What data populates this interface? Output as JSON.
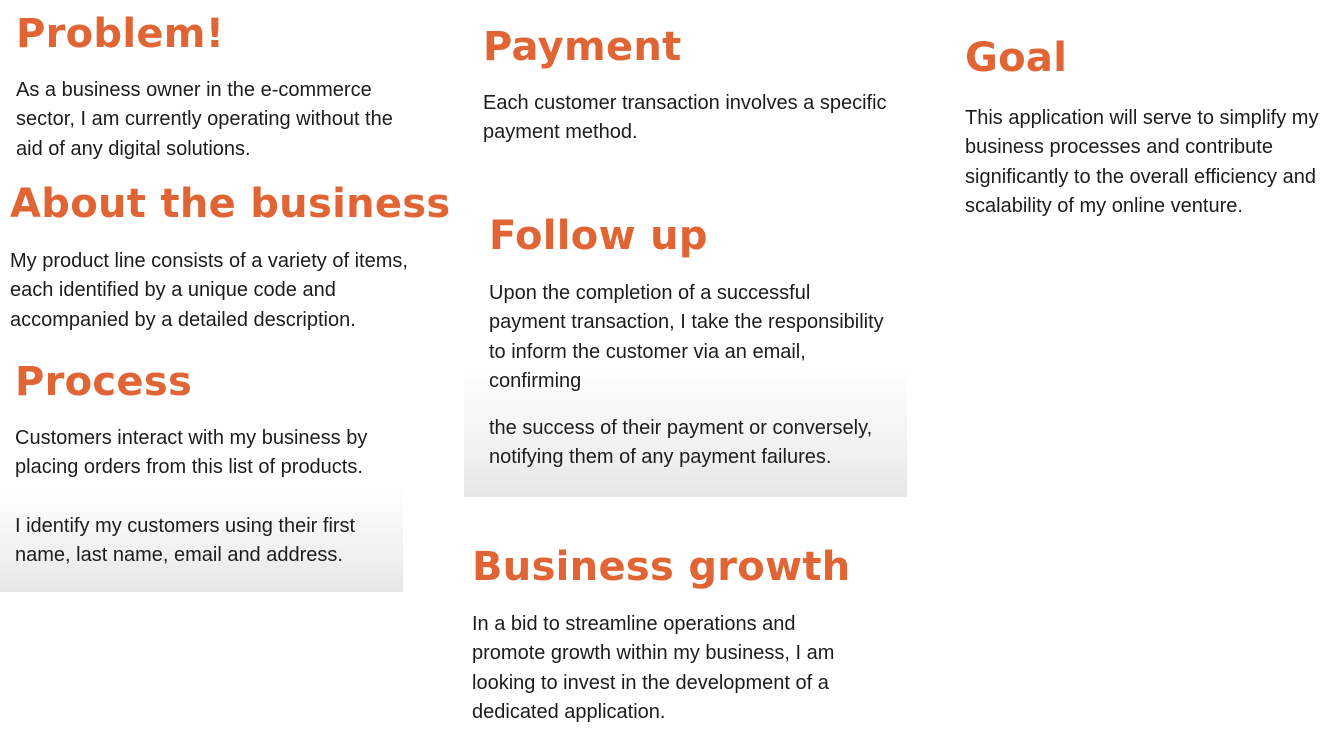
{
  "theme": {
    "accent": "#e06434",
    "text": "#1c1c1c",
    "background": "#ffffff"
  },
  "sections": {
    "problem": {
      "title": "Problem!",
      "lines": [
        "As a business owner in the e-commerce",
        "sector, I am currently operating without the",
        "aid of any digital solutions."
      ]
    },
    "about": {
      "title": "About the business",
      "lines": [
        "My product line consists of a variety of items,",
        "each identified by a unique code and",
        "accompanied by a detailed description."
      ]
    },
    "process": {
      "title": "Process",
      "paragraph1": [
        "Customers interact with my business by",
        "placing orders from this list of products."
      ],
      "paragraph2": [
        "I identify my customers using their first",
        "name, last name, email and address."
      ]
    },
    "payment": {
      "title": "Payment",
      "lines": [
        "Each customer transaction involves a specific",
        "payment method."
      ]
    },
    "followup": {
      "title": "Follow up",
      "lines": [
        "Upon the completion of a successful",
        "payment transaction, I take the responsibility",
        "to inform the customer via an email,",
        "confirming"
      ],
      "continuation": [
        "the success of their payment or conversely,",
        "notifying them of any payment failures."
      ]
    },
    "growth": {
      "title": "Business growth",
      "lines": [
        "In a bid to streamline operations and",
        "promote growth within my business, I am",
        "looking to invest in the development of a",
        "dedicated application."
      ]
    },
    "goal": {
      "title": "Goal",
      "lines": [
        "This application will serve to simplify my",
        "business processes and contribute",
        "significantly to the overall efficiency and",
        "scalability of my online venture."
      ]
    }
  }
}
